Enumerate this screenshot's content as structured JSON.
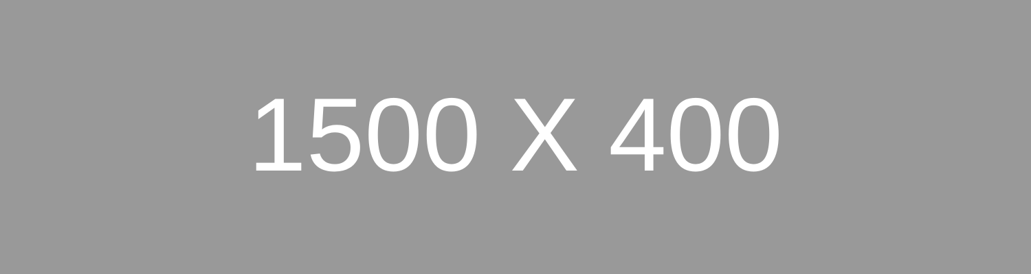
{
  "placeholder": {
    "label": "1500 X 400",
    "background_color": "#999999",
    "text_color": "#ffffff"
  }
}
